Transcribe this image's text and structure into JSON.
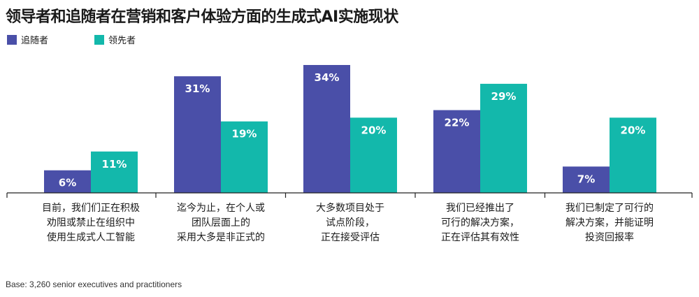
{
  "chart_data": {
    "type": "bar",
    "title": "领导者和追随者在营销和客户体验方面的生成式AI实施现状",
    "categories": [
      [
        "目前，我们们正在积极",
        "劝阻或禁止在组织中",
        "使用生成式人工智能"
      ],
      [
        "迄今为止，在个人或",
        "团队层面上的",
        "采用大多是非正式的"
      ],
      [
        "大多数项目处于",
        "试点阶段，",
        "正在接受评估"
      ],
      [
        "我们已经推出了",
        "可行的解决方案，",
        "正在评估其有效性"
      ],
      [
        "我们已制定了可行的",
        "解决方案，并能证明",
        "投资回报率"
      ]
    ],
    "series": [
      {
        "name": "追随者",
        "color": "#4a4fa8",
        "values": [
          6,
          31,
          34,
          22,
          7
        ],
        "labels": [
          "6%",
          "31%",
          "34%",
          "22%",
          "7%"
        ]
      },
      {
        "name": "领先者",
        "color": "#13b8ab",
        "values": [
          11,
          19,
          20,
          29,
          20
        ],
        "labels": [
          "11%",
          "19%",
          "20%",
          "29%",
          "20%"
        ]
      }
    ],
    "ylim": [
      0,
      34
    ],
    "xlabel": "",
    "ylabel": "",
    "grid": false,
    "legend_position": "top-left"
  },
  "footnote": "Base: 3,260 senior executives and practitioners"
}
